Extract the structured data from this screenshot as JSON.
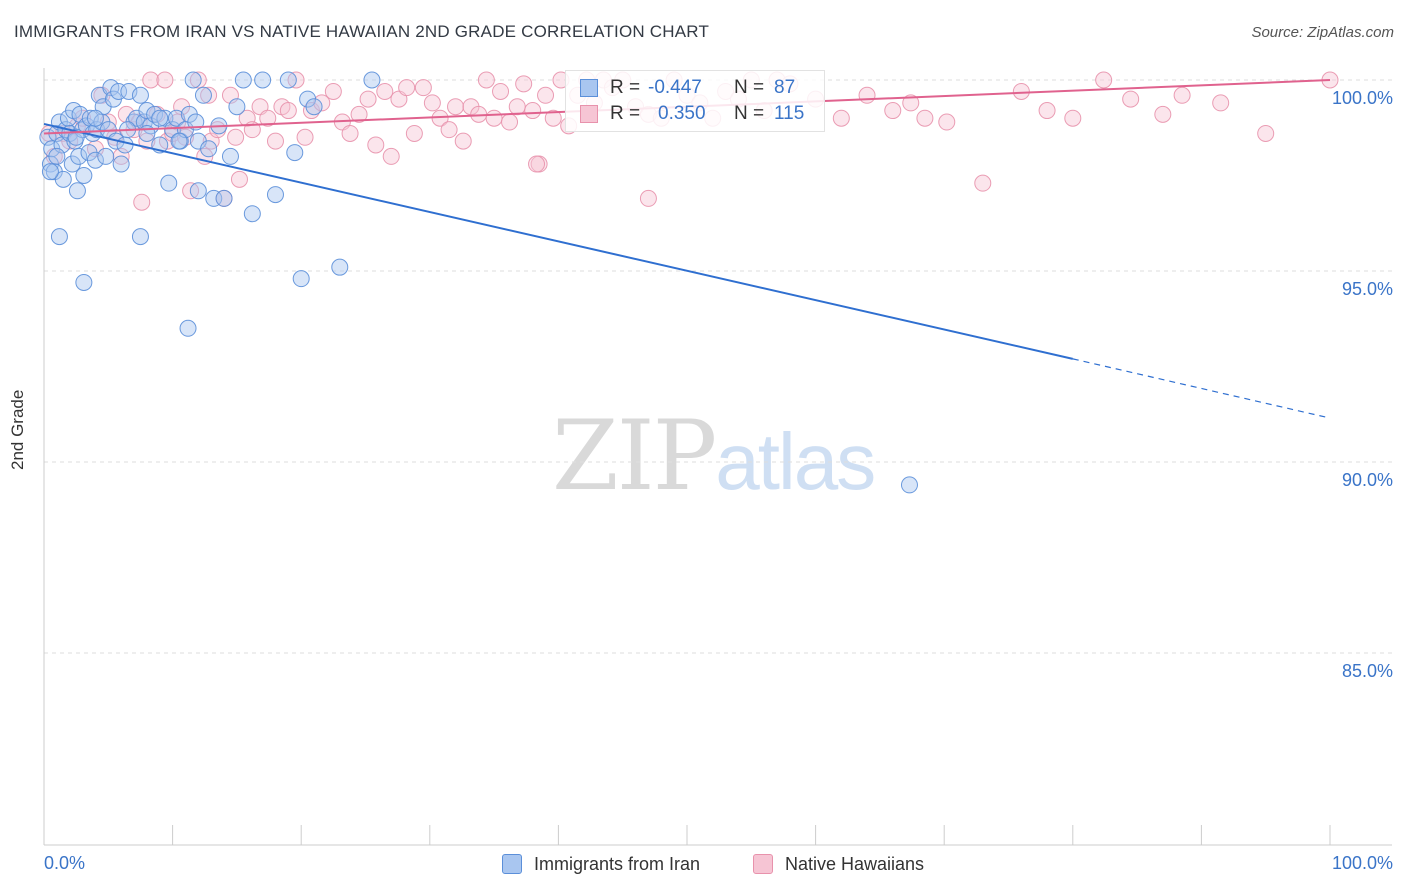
{
  "chart_data": {
    "type": "scatter",
    "title": "IMMIGRANTS FROM IRAN VS NATIVE HAWAIIAN 2ND GRADE CORRELATION CHART",
    "source": "Source: ZipAtlas.com",
    "xlabel": "",
    "ylabel": "2nd Grade",
    "xlim": [
      0,
      100
    ],
    "ylim": [
      80.5,
      100.5
    ],
    "x_tick_labels": [
      "0.0%",
      "100.0%"
    ],
    "y_ticks": [
      100,
      95,
      90,
      85
    ],
    "y_tick_labels": [
      "100.0%",
      "95.0%",
      "90.0%",
      "85.0%"
    ],
    "grid": true,
    "watermark": {
      "zip": "ZIP",
      "atlas": "atlas"
    },
    "legend_stats": [
      {
        "r_label": "R =",
        "r_value": "-0.447",
        "n_label": "N =",
        "n_value": "87"
      },
      {
        "r_label": "R =",
        "r_value": "0.350",
        "n_label": "N =",
        "n_value": "115"
      }
    ],
    "series": [
      {
        "name": "Immigrants from Iran",
        "color": "#5b8fd9",
        "fill": "#a9c6f0",
        "line_color": "#2f6fd0",
        "trend": {
          "x0": 0,
          "y0": 98.85,
          "x1": 80,
          "y1": 92.7,
          "dash_to_x": 100,
          "dash_to_y": 91.15
        },
        "points": [
          [
            0.3,
            98.5
          ],
          [
            0.5,
            97.8
          ],
          [
            0.6,
            98.2
          ],
          [
            0.8,
            97.6
          ],
          [
            1.0,
            98.6
          ],
          [
            1.2,
            98.9
          ],
          [
            1.4,
            98.3
          ],
          [
            1.5,
            97.4
          ],
          [
            1.7,
            98.7
          ],
          [
            1.9,
            99.0
          ],
          [
            2.0,
            98.6
          ],
          [
            2.2,
            97.8
          ],
          [
            2.3,
            99.2
          ],
          [
            2.4,
            98.4
          ],
          [
            2.6,
            97.1
          ],
          [
            2.7,
            98.0
          ],
          [
            2.8,
            99.1
          ],
          [
            3.0,
            98.7
          ],
          [
            3.1,
            97.5
          ],
          [
            3.3,
            98.8
          ],
          [
            3.5,
            98.1
          ],
          [
            3.6,
            99.0
          ],
          [
            3.8,
            98.6
          ],
          [
            4.0,
            97.9
          ],
          [
            4.1,
            98.7
          ],
          [
            4.3,
            99.6
          ],
          [
            4.5,
            98.9
          ],
          [
            4.6,
            99.3
          ],
          [
            4.8,
            98.0
          ],
          [
            5.0,
            98.7
          ],
          [
            5.2,
            99.8
          ],
          [
            5.4,
            99.5
          ],
          [
            5.6,
            98.4
          ],
          [
            5.8,
            99.7
          ],
          [
            6.0,
            97.8
          ],
          [
            6.3,
            98.3
          ],
          [
            6.6,
            99.7
          ],
          [
            7.0,
            98.9
          ],
          [
            7.2,
            99.0
          ],
          [
            7.5,
            99.6
          ],
          [
            7.8,
            98.9
          ],
          [
            8.0,
            99.2
          ],
          [
            8.3,
            98.8
          ],
          [
            8.6,
            99.1
          ],
          [
            9.0,
            98.3
          ],
          [
            9.4,
            99.0
          ],
          [
            9.7,
            97.3
          ],
          [
            10.0,
            98.7
          ],
          [
            10.3,
            99.0
          ],
          [
            10.6,
            98.4
          ],
          [
            11.0,
            98.7
          ],
          [
            11.3,
            99.1
          ],
          [
            11.6,
            100.0
          ],
          [
            12.0,
            98.4
          ],
          [
            12.4,
            99.6
          ],
          [
            12.8,
            98.2
          ],
          [
            13.2,
            96.9
          ],
          [
            13.6,
            98.8
          ],
          [
            14.0,
            96.9
          ],
          [
            14.5,
            98.0
          ],
          [
            15.0,
            99.3
          ],
          [
            15.5,
            100.0
          ],
          [
            16.2,
            96.5
          ],
          [
            17.0,
            100.0
          ],
          [
            18.0,
            97.0
          ],
          [
            19.0,
            100.0
          ],
          [
            19.5,
            98.1
          ],
          [
            20.5,
            99.5
          ],
          [
            21.0,
            99.3
          ],
          [
            23.0,
            95.1
          ],
          [
            25.5,
            100.0
          ],
          [
            1.2,
            95.9
          ],
          [
            3.1,
            94.7
          ],
          [
            7.5,
            95.9
          ],
          [
            11.2,
            93.5
          ],
          [
            20.0,
            94.8
          ],
          [
            67.3,
            89.4
          ],
          [
            0.5,
            97.6
          ],
          [
            1.0,
            98.0
          ],
          [
            2.5,
            98.5
          ],
          [
            4.0,
            99.0
          ],
          [
            6.5,
            98.7
          ],
          [
            8.0,
            98.6
          ],
          [
            9.0,
            99.0
          ],
          [
            11.8,
            98.9
          ],
          [
            12.0,
            97.1
          ],
          [
            10.5,
            98.4
          ]
        ]
      },
      {
        "name": "Native Hawaiians",
        "color": "#e892ac",
        "fill": "#f6c5d4",
        "line_color": "#e0628e",
        "trend": {
          "x0": 0,
          "y0": 98.6,
          "x1": 100,
          "y1": 100.0
        },
        "points": [
          [
            0.4,
            98.6
          ],
          [
            0.8,
            98.0
          ],
          [
            1.5,
            98.6
          ],
          [
            2.0,
            98.4
          ],
          [
            2.6,
            98.8
          ],
          [
            3.0,
            99.0
          ],
          [
            4.0,
            98.2
          ],
          [
            4.5,
            99.6
          ],
          [
            5.0,
            98.9
          ],
          [
            5.5,
            98.5
          ],
          [
            6.0,
            98.0
          ],
          [
            6.4,
            99.1
          ],
          [
            7.0,
            98.7
          ],
          [
            7.4,
            98.9
          ],
          [
            7.6,
            96.8
          ],
          [
            8.0,
            98.4
          ],
          [
            8.3,
            100.0
          ],
          [
            8.8,
            99.1
          ],
          [
            9.4,
            100.0
          ],
          [
            9.6,
            98.4
          ],
          [
            10.0,
            98.6
          ],
          [
            10.4,
            98.9
          ],
          [
            10.7,
            99.3
          ],
          [
            11.0,
            98.5
          ],
          [
            11.4,
            97.1
          ],
          [
            12.0,
            100.0
          ],
          [
            12.5,
            98.0
          ],
          [
            12.8,
            99.6
          ],
          [
            13.0,
            98.4
          ],
          [
            13.5,
            98.7
          ],
          [
            14.0,
            96.9
          ],
          [
            14.5,
            99.6
          ],
          [
            14.9,
            98.5
          ],
          [
            15.2,
            97.4
          ],
          [
            15.8,
            99.0
          ],
          [
            16.2,
            98.7
          ],
          [
            16.8,
            99.3
          ],
          [
            17.4,
            99.0
          ],
          [
            18.0,
            98.4
          ],
          [
            18.5,
            99.3
          ],
          [
            19.0,
            99.2
          ],
          [
            19.6,
            100.0
          ],
          [
            20.3,
            98.5
          ],
          [
            20.8,
            99.2
          ],
          [
            21.6,
            99.4
          ],
          [
            22.5,
            99.7
          ],
          [
            23.2,
            98.9
          ],
          [
            23.8,
            98.6
          ],
          [
            24.5,
            99.1
          ],
          [
            25.2,
            99.5
          ],
          [
            25.8,
            98.3
          ],
          [
            26.5,
            99.7
          ],
          [
            27.0,
            98.0
          ],
          [
            27.6,
            99.5
          ],
          [
            28.2,
            99.8
          ],
          [
            28.8,
            98.6
          ],
          [
            29.5,
            99.8
          ],
          [
            30.2,
            99.4
          ],
          [
            30.8,
            99.0
          ],
          [
            31.5,
            98.7
          ],
          [
            32.0,
            99.3
          ],
          [
            32.6,
            98.4
          ],
          [
            33.2,
            99.3
          ],
          [
            33.8,
            99.1
          ],
          [
            34.4,
            100.0
          ],
          [
            35.0,
            99.0
          ],
          [
            35.5,
            99.7
          ],
          [
            36.2,
            98.9
          ],
          [
            36.8,
            99.3
          ],
          [
            37.3,
            99.9
          ],
          [
            38.0,
            99.2
          ],
          [
            38.5,
            97.8
          ],
          [
            39.0,
            99.6
          ],
          [
            39.6,
            99.0
          ],
          [
            40.2,
            100.0
          ],
          [
            40.8,
            98.8
          ],
          [
            41.5,
            99.6
          ],
          [
            42.2,
            100.0
          ],
          [
            42.8,
            99.4
          ],
          [
            43.5,
            100.0
          ],
          [
            44.2,
            99.8
          ],
          [
            45.0,
            100.0
          ],
          [
            46.0,
            99.3
          ],
          [
            47.0,
            99.1
          ],
          [
            48.0,
            99.0
          ],
          [
            49.0,
            100.0
          ],
          [
            50.0,
            99.6
          ],
          [
            51.0,
            99.4
          ],
          [
            52.0,
            99.0
          ],
          [
            53.0,
            99.7
          ],
          [
            54.0,
            99.5
          ],
          [
            55.0,
            100.0
          ],
          [
            56.0,
            99.2
          ],
          [
            57.0,
            100.0
          ],
          [
            58.0,
            99.9
          ],
          [
            60.0,
            99.5
          ],
          [
            62.0,
            99.0
          ],
          [
            64.0,
            99.6
          ],
          [
            66.0,
            99.2
          ],
          [
            67.4,
            99.4
          ],
          [
            68.5,
            99.0
          ],
          [
            70.2,
            98.9
          ],
          [
            73.0,
            97.3
          ],
          [
            76.0,
            99.7
          ],
          [
            78.0,
            99.2
          ],
          [
            80.0,
            99.0
          ],
          [
            82.4,
            100.0
          ],
          [
            84.5,
            99.5
          ],
          [
            87.0,
            99.1
          ],
          [
            88.5,
            99.6
          ],
          [
            91.5,
            99.4
          ],
          [
            95.0,
            98.6
          ],
          [
            100.0,
            100.0
          ],
          [
            38.3,
            97.8
          ],
          [
            47.0,
            96.9
          ]
        ]
      }
    ]
  }
}
